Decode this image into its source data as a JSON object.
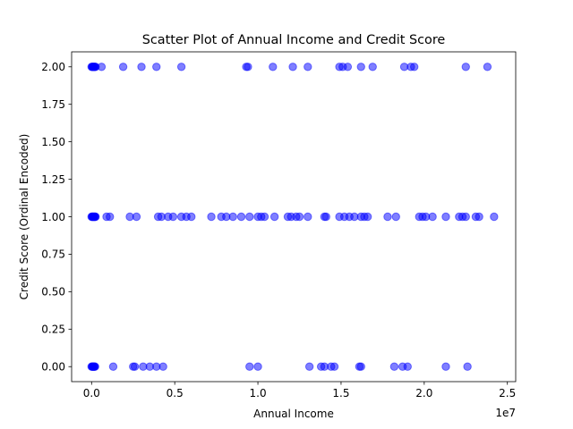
{
  "chart_data": {
    "type": "scatter",
    "title": "Scatter Plot of Annual Income and Credit Score",
    "xlabel": "Annual Income",
    "ylabel": "Credit Score (Ordinal Encoded)",
    "x_offset_label": "1e7",
    "xlim": [
      -1200000,
      25500000
    ],
    "ylim": [
      -0.1,
      2.1
    ],
    "xticks": [
      0,
      5000000,
      10000000,
      15000000,
      20000000,
      25000000
    ],
    "xtick_labels": [
      "0.0",
      "0.5",
      "1.0",
      "1.5",
      "2.0",
      "2.5"
    ],
    "yticks": [
      0,
      0.25,
      0.5,
      0.75,
      1.0,
      1.25,
      1.5,
      1.75,
      2.0
    ],
    "ytick_labels": [
      "0.00",
      "0.25",
      "0.50",
      "0.75",
      "1.00",
      "1.25",
      "1.50",
      "1.75",
      "2.00"
    ],
    "grid": false,
    "marker_color": "#0000ff",
    "marker_alpha": 0.5,
    "points": [
      {
        "x": 0,
        "y": 2
      },
      {
        "x": 30000,
        "y": 2
      },
      {
        "x": 60000,
        "y": 2
      },
      {
        "x": 90000,
        "y": 2
      },
      {
        "x": 120000,
        "y": 2
      },
      {
        "x": 150000,
        "y": 2
      },
      {
        "x": 180000,
        "y": 2
      },
      {
        "x": 210000,
        "y": 2
      },
      {
        "x": 240000,
        "y": 2
      },
      {
        "x": 600000,
        "y": 2
      },
      {
        "x": 1900000,
        "y": 2
      },
      {
        "x": 3000000,
        "y": 2
      },
      {
        "x": 3900000,
        "y": 2
      },
      {
        "x": 5400000,
        "y": 2
      },
      {
        "x": 9300000,
        "y": 2
      },
      {
        "x": 9400000,
        "y": 2
      },
      {
        "x": 10900000,
        "y": 2
      },
      {
        "x": 12100000,
        "y": 2
      },
      {
        "x": 13000000,
        "y": 2
      },
      {
        "x": 14900000,
        "y": 2
      },
      {
        "x": 15100000,
        "y": 2
      },
      {
        "x": 15400000,
        "y": 2
      },
      {
        "x": 16200000,
        "y": 2
      },
      {
        "x": 16900000,
        "y": 2
      },
      {
        "x": 18800000,
        "y": 2
      },
      {
        "x": 19200000,
        "y": 2
      },
      {
        "x": 19400000,
        "y": 2
      },
      {
        "x": 22500000,
        "y": 2
      },
      {
        "x": 23800000,
        "y": 2
      },
      {
        "x": 0,
        "y": 1
      },
      {
        "x": 30000,
        "y": 1
      },
      {
        "x": 60000,
        "y": 1
      },
      {
        "x": 90000,
        "y": 1
      },
      {
        "x": 120000,
        "y": 1
      },
      {
        "x": 150000,
        "y": 1
      },
      {
        "x": 180000,
        "y": 1
      },
      {
        "x": 210000,
        "y": 1
      },
      {
        "x": 240000,
        "y": 1
      },
      {
        "x": 900000,
        "y": 1
      },
      {
        "x": 1100000,
        "y": 1
      },
      {
        "x": 2300000,
        "y": 1
      },
      {
        "x": 2700000,
        "y": 1
      },
      {
        "x": 4000000,
        "y": 1
      },
      {
        "x": 4200000,
        "y": 1
      },
      {
        "x": 4600000,
        "y": 1
      },
      {
        "x": 4900000,
        "y": 1
      },
      {
        "x": 5400000,
        "y": 1
      },
      {
        "x": 5700000,
        "y": 1
      },
      {
        "x": 6000000,
        "y": 1
      },
      {
        "x": 7200000,
        "y": 1
      },
      {
        "x": 7800000,
        "y": 1
      },
      {
        "x": 8100000,
        "y": 1
      },
      {
        "x": 8500000,
        "y": 1
      },
      {
        "x": 9000000,
        "y": 1
      },
      {
        "x": 9500000,
        "y": 1
      },
      {
        "x": 10000000,
        "y": 1
      },
      {
        "x": 10200000,
        "y": 1
      },
      {
        "x": 10400000,
        "y": 1
      },
      {
        "x": 11000000,
        "y": 1
      },
      {
        "x": 11800000,
        "y": 1
      },
      {
        "x": 12000000,
        "y": 1
      },
      {
        "x": 12300000,
        "y": 1
      },
      {
        "x": 12500000,
        "y": 1
      },
      {
        "x": 13000000,
        "y": 1
      },
      {
        "x": 14000000,
        "y": 1
      },
      {
        "x": 14100000,
        "y": 1
      },
      {
        "x": 14900000,
        "y": 1
      },
      {
        "x": 15200000,
        "y": 1
      },
      {
        "x": 15500000,
        "y": 1
      },
      {
        "x": 15800000,
        "y": 1
      },
      {
        "x": 16200000,
        "y": 1
      },
      {
        "x": 16400000,
        "y": 1
      },
      {
        "x": 16600000,
        "y": 1
      },
      {
        "x": 17800000,
        "y": 1
      },
      {
        "x": 18300000,
        "y": 1
      },
      {
        "x": 19700000,
        "y": 1
      },
      {
        "x": 19900000,
        "y": 1
      },
      {
        "x": 20100000,
        "y": 1
      },
      {
        "x": 20500000,
        "y": 1
      },
      {
        "x": 21300000,
        "y": 1
      },
      {
        "x": 22100000,
        "y": 1
      },
      {
        "x": 22300000,
        "y": 1
      },
      {
        "x": 22500000,
        "y": 1
      },
      {
        "x": 23100000,
        "y": 1
      },
      {
        "x": 23300000,
        "y": 1
      },
      {
        "x": 24200000,
        "y": 1
      },
      {
        "x": 0,
        "y": 0
      },
      {
        "x": 30000,
        "y": 0
      },
      {
        "x": 60000,
        "y": 0
      },
      {
        "x": 90000,
        "y": 0
      },
      {
        "x": 120000,
        "y": 0
      },
      {
        "x": 150000,
        "y": 0
      },
      {
        "x": 180000,
        "y": 0
      },
      {
        "x": 210000,
        "y": 0
      },
      {
        "x": 1300000,
        "y": 0
      },
      {
        "x": 2500000,
        "y": 0
      },
      {
        "x": 2600000,
        "y": 0
      },
      {
        "x": 3100000,
        "y": 0
      },
      {
        "x": 3500000,
        "y": 0
      },
      {
        "x": 3900000,
        "y": 0
      },
      {
        "x": 4300000,
        "y": 0
      },
      {
        "x": 9500000,
        "y": 0
      },
      {
        "x": 10000000,
        "y": 0
      },
      {
        "x": 13100000,
        "y": 0
      },
      {
        "x": 13800000,
        "y": 0
      },
      {
        "x": 14000000,
        "y": 0
      },
      {
        "x": 14400000,
        "y": 0
      },
      {
        "x": 14600000,
        "y": 0
      },
      {
        "x": 16100000,
        "y": 0
      },
      {
        "x": 16200000,
        "y": 0
      },
      {
        "x": 18200000,
        "y": 0
      },
      {
        "x": 18700000,
        "y": 0
      },
      {
        "x": 19000000,
        "y": 0
      },
      {
        "x": 21300000,
        "y": 0
      },
      {
        "x": 22600000,
        "y": 0
      }
    ]
  }
}
